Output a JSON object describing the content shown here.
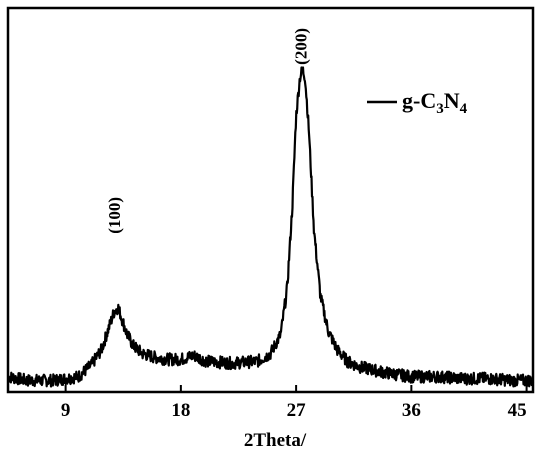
{
  "chart_data": {
    "type": "line",
    "xlabel": "2Theta/",
    "ylabel": "",
    "xlim": [
      4.5,
      45.5
    ],
    "ylim": [
      0,
      100
    ],
    "x_ticks": [
      "9",
      "18",
      "27",
      "36",
      "45"
    ],
    "y_ticks": [],
    "grid": false,
    "legend": {
      "position": "top-right",
      "entries": [
        {
          "prefix": "g-C",
          "sub1": "3",
          "mid": "N",
          "sub2": "4"
        }
      ]
    },
    "annotations": [
      {
        "text": "(100)",
        "x": 12.8,
        "y": 46
      },
      {
        "text": "(200)",
        "x": 27.4,
        "y": 90
      }
    ],
    "series": [
      {
        "name": "g-C3N4",
        "color": "#000000",
        "x": [
          4.5,
          6,
          8,
          10,
          11,
          11.8,
          12.3,
          12.8,
          13.1,
          13.4,
          13.8,
          14.3,
          15,
          16,
          17,
          18,
          19,
          20,
          22,
          24,
          25,
          25.8,
          26.3,
          26.7,
          27.0,
          27.3,
          27.5,
          27.7,
          28.0,
          28.4,
          28.9,
          29.5,
          30.2,
          31,
          32,
          34,
          36,
          38,
          40,
          42,
          44,
          45.5
        ],
        "values": [
          4,
          3,
          3,
          4,
          7,
          11,
          16,
          21,
          22,
          19,
          15,
          12,
          10,
          9,
          8.5,
          8.5,
          9.5,
          8,
          7.5,
          8,
          10,
          15,
          27,
          48,
          72,
          82,
          84,
          82,
          68,
          42,
          25,
          16,
          11,
          8,
          6.5,
          5,
          4,
          4,
          3.5,
          3.5,
          3,
          3
        ]
      }
    ]
  }
}
